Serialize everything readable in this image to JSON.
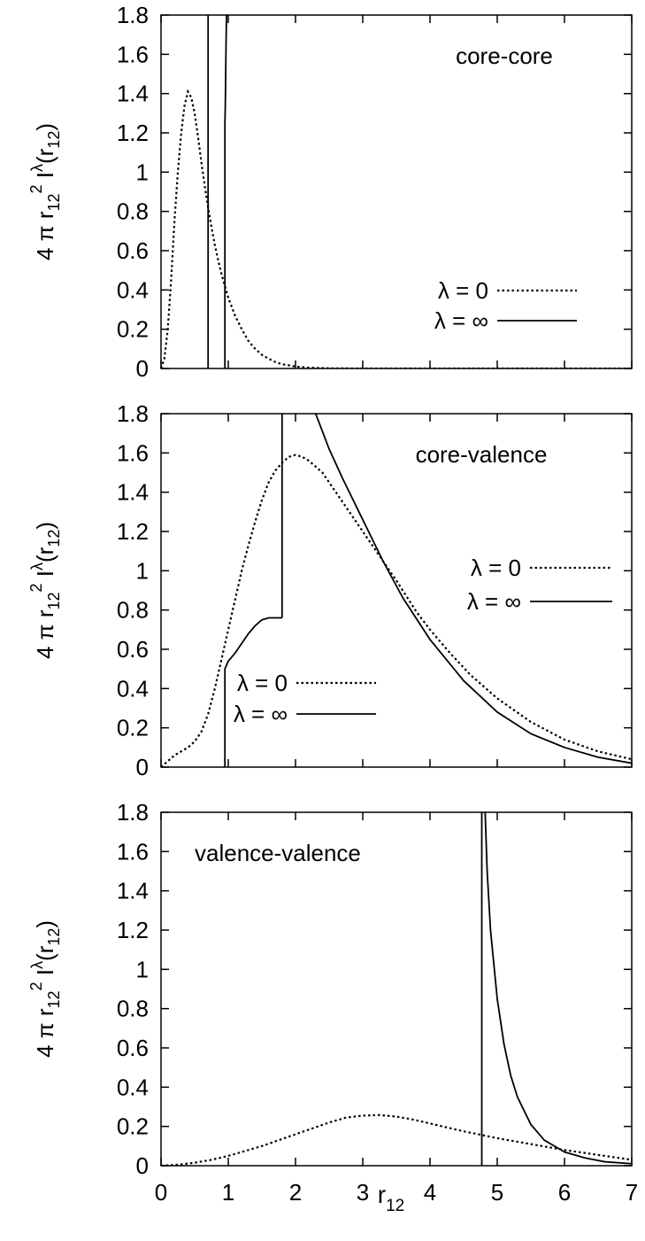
{
  "chart_data": [
    {
      "type": "line",
      "title": "core-core",
      "ylabel": {
        "pre": "4 π r",
        "sub1": "12",
        "sup1": "2",
        "mid": " I",
        "sup2": "λ",
        "post1": "(r",
        "sub2": "12",
        "post2": ")"
      },
      "xlim": [
        0,
        7
      ],
      "ylim": [
        0,
        1.8
      ],
      "yticks": [
        "0",
        "0.2",
        "0.4",
        "0.6",
        "0.8",
        "1",
        "1.2",
        "1.4",
        "1.6",
        "1.8"
      ],
      "grid": false,
      "legend_placement": "lower-right",
      "series": [
        {
          "name": "λ = 0",
          "style": "dotted",
          "color": "#000000",
          "x": [
            0,
            0.05,
            0.1,
            0.15,
            0.2,
            0.25,
            0.3,
            0.35,
            0.4,
            0.45,
            0.5,
            0.55,
            0.6,
            0.65,
            0.7,
            0.75,
            0.8,
            0.85,
            0.9,
            0.95,
            1.0,
            1.1,
            1.2,
            1.3,
            1.4,
            1.5,
            1.6,
            1.7,
            1.8,
            2.0,
            2.2,
            2.5,
            3.0,
            4.0,
            5.0,
            6.0,
            7.0
          ],
          "y": [
            0,
            0.05,
            0.2,
            0.45,
            0.75,
            1.0,
            1.2,
            1.34,
            1.41,
            1.38,
            1.3,
            1.18,
            1.05,
            0.93,
            0.82,
            0.72,
            0.63,
            0.55,
            0.48,
            0.42,
            0.36,
            0.27,
            0.2,
            0.14,
            0.1,
            0.07,
            0.05,
            0.033,
            0.022,
            0.01,
            0.004,
            0.001,
            0,
            0,
            0,
            0,
            0
          ]
        },
        {
          "name": "λ = ∞",
          "style": "solid",
          "color": "#000000",
          "segments": [
            {
              "x": [
                0.7,
                0.7
              ],
              "y": [
                0,
                1.8
              ]
            },
            {
              "x": [
                0.95,
                0.95
              ],
              "y": [
                0,
                1.25
              ]
            },
            {
              "x": [
                0.95,
                0.955,
                0.96,
                0.965,
                0.97,
                0.975
              ],
              "y": [
                1.25,
                1.32,
                1.45,
                1.6,
                1.72,
                1.8
              ]
            }
          ]
        }
      ]
    },
    {
      "type": "line",
      "title": "core-valence",
      "ylabel": {
        "pre": "4 π r",
        "sub1": "12",
        "sup1": "2",
        "mid": " I",
        "sup2": "λ",
        "post1": "(r",
        "sub2": "12",
        "post2": ")"
      },
      "xlim": [
        0,
        7
      ],
      "ylim": [
        0,
        1.8
      ],
      "yticks": [
        "0",
        "0.2",
        "0.4",
        "0.6",
        "0.8",
        "1",
        "1.2",
        "1.4",
        "1.6",
        "1.8"
      ],
      "grid": false,
      "legend_placement": "middle-right",
      "series": [
        {
          "name": "λ = 0",
          "style": "dotted",
          "color": "#000000",
          "x": [
            0,
            0.1,
            0.2,
            0.3,
            0.4,
            0.5,
            0.6,
            0.7,
            0.8,
            0.9,
            1.0,
            1.1,
            1.2,
            1.3,
            1.4,
            1.5,
            1.6,
            1.7,
            1.8,
            1.9,
            2.0,
            2.1,
            2.2,
            2.3,
            2.4,
            2.5,
            2.6,
            2.8,
            3.0,
            3.2,
            3.5,
            3.8,
            4.0,
            4.3,
            4.6,
            5.0,
            5.5,
            6.0,
            6.5,
            7.0
          ],
          "y": [
            0,
            0.03,
            0.06,
            0.08,
            0.1,
            0.13,
            0.18,
            0.27,
            0.4,
            0.55,
            0.7,
            0.85,
            1.0,
            1.13,
            1.25,
            1.36,
            1.45,
            1.51,
            1.55,
            1.58,
            1.59,
            1.58,
            1.56,
            1.53,
            1.5,
            1.45,
            1.4,
            1.3,
            1.2,
            1.1,
            0.95,
            0.79,
            0.7,
            0.58,
            0.47,
            0.35,
            0.23,
            0.14,
            0.08,
            0.04
          ]
        },
        {
          "name": "λ = ∞",
          "style": "solid",
          "color": "#000000",
          "segments": [
            {
              "x": [
                0.95,
                0.95,
                1.0,
                1.1,
                1.2,
                1.3,
                1.4,
                1.5,
                1.6,
                1.7,
                1.8
              ],
              "y": [
                0,
                0.5,
                0.54,
                0.58,
                0.63,
                0.68,
                0.72,
                0.75,
                0.76,
                0.76,
                0.76
              ]
            },
            {
              "x": [
                1.8,
                1.8
              ],
              "y": [
                0.76,
                1.8
              ]
            },
            {
              "x": [
                2.3,
                2.5,
                2.7,
                3.0,
                3.3,
                3.6,
                4.0,
                4.5,
                5.0,
                5.5,
                6.0,
                6.5,
                7.0
              ],
              "y": [
                1.8,
                1.62,
                1.47,
                1.26,
                1.05,
                0.86,
                0.65,
                0.44,
                0.28,
                0.17,
                0.1,
                0.05,
                0.02
              ]
            }
          ]
        }
      ]
    },
    {
      "type": "line",
      "title": "valence-valence",
      "xlabel": {
        "main": "r",
        "sub": "12"
      },
      "ylabel": {
        "pre": "4 π r",
        "sub1": "12",
        "sup1": "2",
        "mid": " I",
        "sup2": "λ",
        "post1": "(r",
        "sub2": "12",
        "post2": ")"
      },
      "xlim": [
        0,
        7
      ],
      "ylim": [
        0,
        1.8
      ],
      "xticks": [
        "0",
        "1",
        "2",
        "3",
        "4",
        "5",
        "6",
        "7"
      ],
      "yticks": [
        "0",
        "0.2",
        "0.4",
        "0.6",
        "0.8",
        "1",
        "1.2",
        "1.4",
        "1.6",
        "1.8"
      ],
      "grid": false,
      "legend_placement": "lower-left",
      "series": [
        {
          "name": "λ = 0",
          "style": "dotted",
          "color": "#000000",
          "x": [
            0,
            0.25,
            0.5,
            0.75,
            1.0,
            1.25,
            1.5,
            1.75,
            2.0,
            2.25,
            2.5,
            2.75,
            3.0,
            3.25,
            3.5,
            3.75,
            4.0,
            4.25,
            4.5,
            4.75,
            5.0,
            5.5,
            6.0,
            6.5,
            7.0
          ],
          "y": [
            0,
            0.005,
            0.015,
            0.03,
            0.05,
            0.075,
            0.1,
            0.13,
            0.16,
            0.19,
            0.22,
            0.245,
            0.255,
            0.258,
            0.25,
            0.235,
            0.215,
            0.195,
            0.175,
            0.158,
            0.14,
            0.11,
            0.08,
            0.055,
            0.03
          ]
        },
        {
          "name": "λ = ∞",
          "style": "solid",
          "color": "#000000",
          "segments": [
            {
              "x": [
                4.77,
                4.77
              ],
              "y": [
                0,
                1.8
              ]
            },
            {
              "x": [
                4.82,
                4.85,
                4.9,
                5.0,
                5.1,
                5.2,
                5.3,
                5.5,
                5.7,
                6.0,
                6.3,
                6.6,
                7.0
              ],
              "y": [
                1.8,
                1.5,
                1.2,
                0.85,
                0.62,
                0.46,
                0.35,
                0.21,
                0.13,
                0.07,
                0.04,
                0.02,
                0.01
              ]
            }
          ]
        }
      ]
    }
  ]
}
